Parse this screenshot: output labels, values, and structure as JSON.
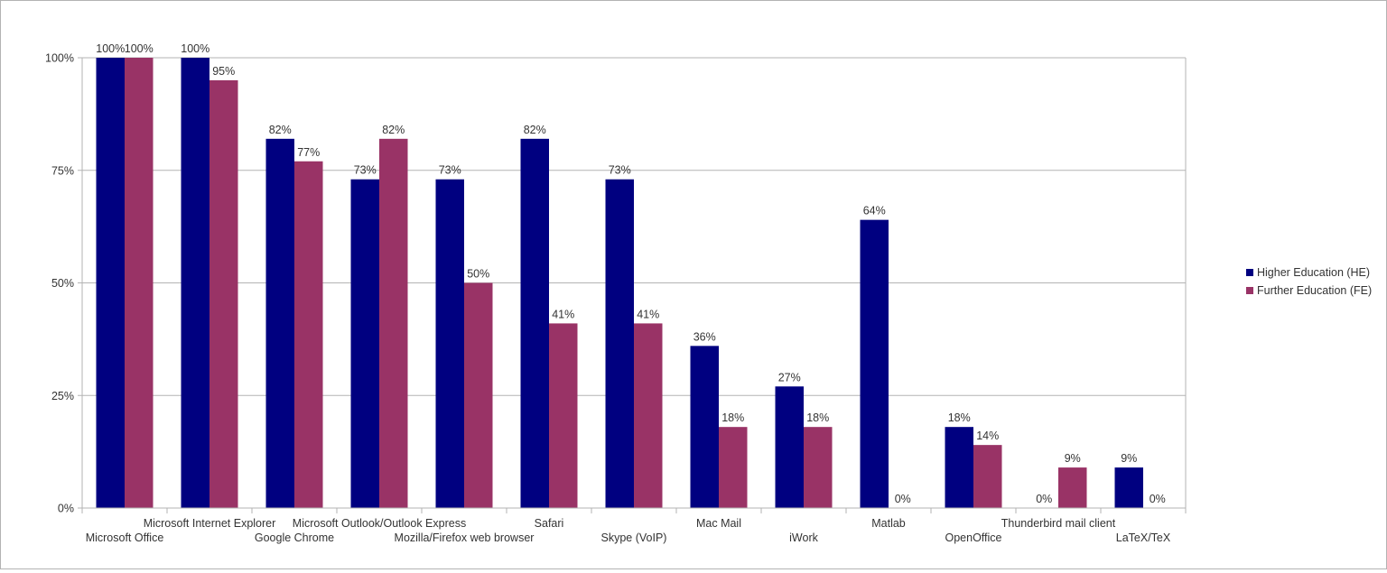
{
  "chart_data": {
    "type": "bar",
    "title": "",
    "xlabel": "",
    "ylabel": "",
    "ylim": [
      0,
      100
    ],
    "y_ticks": [
      "0%",
      "25%",
      "50%",
      "75%",
      "100%"
    ],
    "y_tick_values": [
      0,
      25,
      50,
      75,
      100
    ],
    "grid": true,
    "legend_position": "right",
    "categories": [
      "Microsoft Office",
      "Microsoft Internet Explorer",
      "Google Chrome",
      "Microsoft Outlook/Outlook Express",
      "Mozilla/Firefox web browser",
      "Safari",
      "Skype (VoIP)",
      "Mac Mail",
      "iWork",
      "Matlab",
      "OpenOffice",
      "Thunderbird mail client",
      "LaTeX/TeX"
    ],
    "series": [
      {
        "name": "Higher Education (HE)",
        "color": "#000080",
        "values": [
          100,
          100,
          82,
          73,
          73,
          82,
          73,
          36,
          27,
          64,
          18,
          0,
          9
        ],
        "labels": [
          "100%",
          "100%",
          "82%",
          "73%",
          "73%",
          "82%",
          "73%",
          "36%",
          "27%",
          "64%",
          "18%",
          "0%",
          "9%"
        ]
      },
      {
        "name": "Further Education (FE)",
        "color": "#993366",
        "values": [
          100,
          95,
          77,
          82,
          50,
          41,
          41,
          18,
          18,
          0,
          14,
          9,
          0
        ],
        "labels": [
          "100%",
          "95%",
          "77%",
          "82%",
          "50%",
          "41%",
          "41%",
          "18%",
          "18%",
          "0%",
          "14%",
          "9%",
          "0%"
        ]
      }
    ]
  }
}
